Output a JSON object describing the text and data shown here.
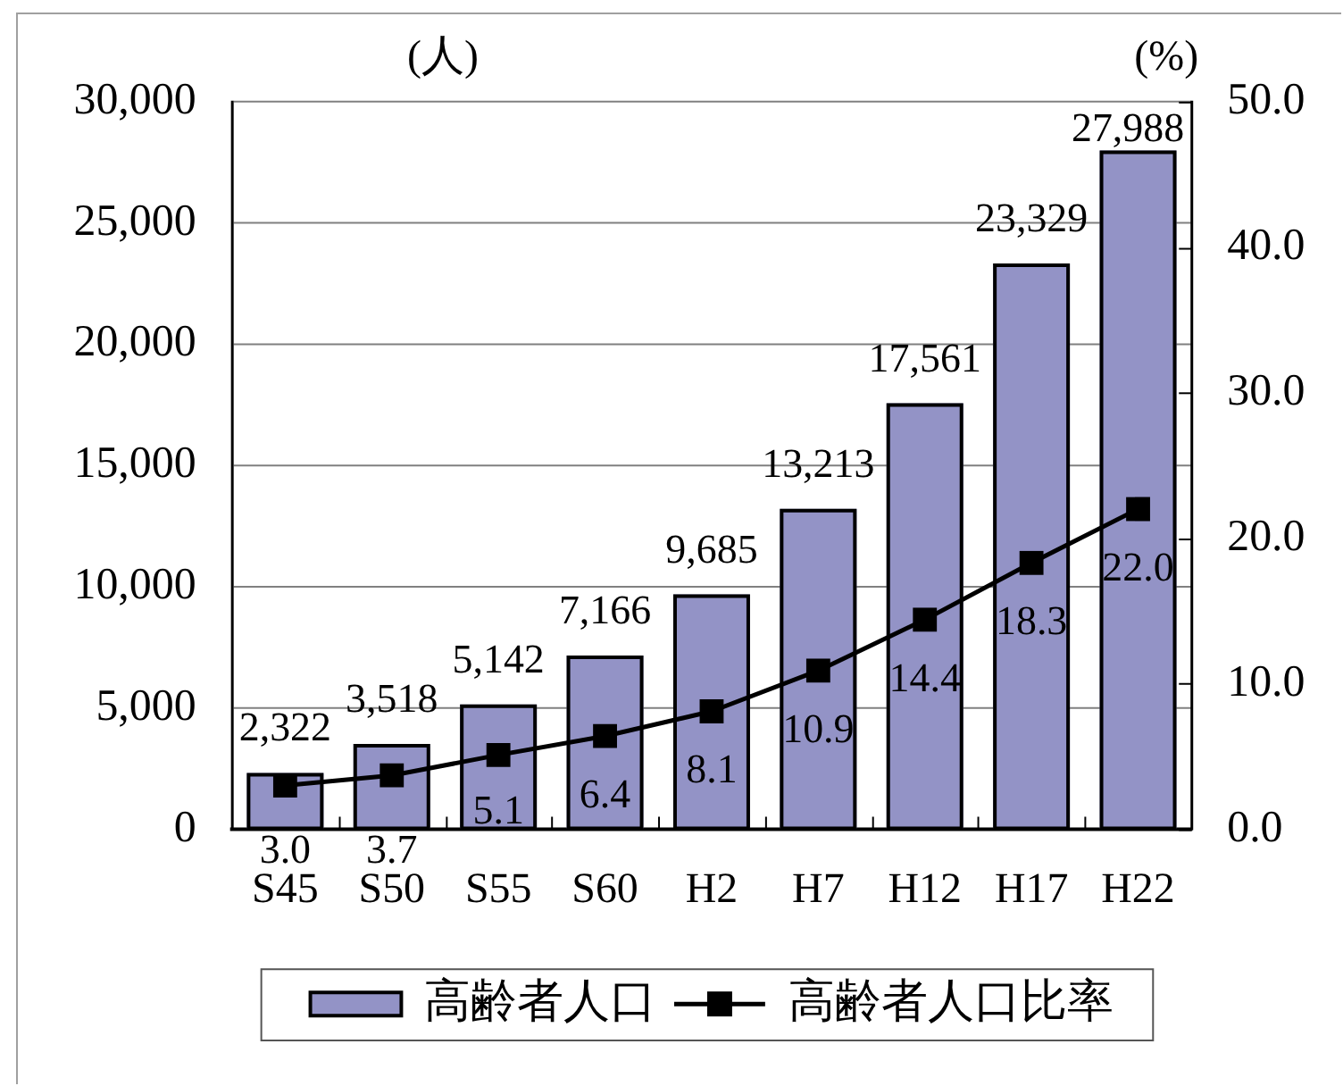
{
  "chart_data": {
    "type": "bar",
    "categories": [
      "S45",
      "S50",
      "S55",
      "S60",
      "H2",
      "H7",
      "H12",
      "H17",
      "H22"
    ],
    "series": [
      {
        "name": "高齢者人口",
        "color": "#9393c6",
        "values": [
          2322,
          3518,
          5142,
          7166,
          9685,
          13213,
          17561,
          23329,
          27988
        ],
        "value_labels": [
          "2,322",
          "3,518",
          "5,142",
          "7,166",
          "9,685",
          "13,213",
          "17,561",
          "23,329",
          "27,988"
        ]
      },
      {
        "name": "高齢者人口比率",
        "type": "line",
        "axis": "y2",
        "color": "#000000",
        "values": [
          3.0,
          3.7,
          5.1,
          6.4,
          8.1,
          10.9,
          14.4,
          18.3,
          22.0
        ],
        "value_labels": [
          "3.0",
          "3.7",
          "5.1",
          "6.4",
          "8.1",
          "10.9",
          "14.4",
          "18.3",
          "22.0"
        ]
      }
    ],
    "ylabel": "(人)",
    "y2label": "(%)",
    "ylim": [
      0,
      30000
    ],
    "yticks": [
      0,
      {
        "value": 5000,
        "label": "5,000"
      },
      {
        "value": 10000,
        "label": "10,000"
      },
      {
        "value": 15000,
        "label": "15,000"
      },
      {
        "value": 20000,
        "label": "20,000"
      },
      {
        "value": 25000,
        "label": "25,000"
      },
      {
        "value": 30000,
        "label": "30,000"
      }
    ],
    "y2lim": [
      0,
      50
    ],
    "y2ticks": [
      {
        "value": 0,
        "label": "0.0"
      },
      {
        "value": 10,
        "label": "10.0"
      },
      {
        "value": 20,
        "label": "20.0"
      },
      {
        "value": 30,
        "label": "30.0"
      },
      {
        "value": 40,
        "label": "40.0"
      },
      {
        "value": 50,
        "label": "50.0"
      }
    ],
    "grid": "y",
    "legend": "bottom",
    "marker": "square"
  }
}
